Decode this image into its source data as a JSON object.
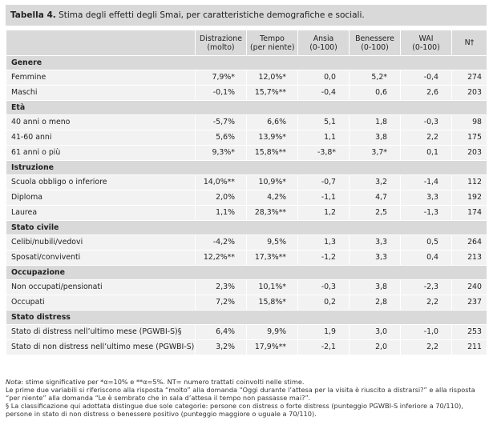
{
  "caption": {
    "label": "Tabella 4.",
    "text": " Stima degli effetti degli Smai, per caratteristiche demografiche e sociali."
  },
  "headers": [
    "",
    "Distrazione\n(molto)",
    "Tempo\n(per niente)",
    "Ansia\n(0-100)",
    "Benessere\n(0-100)",
    "WAI\n(0-100)",
    "N†"
  ],
  "sections": [
    {
      "title": "Genere",
      "rows": [
        [
          "Femmine",
          "7,9%*",
          "12,0%*",
          "0,0",
          "5,2*",
          "-0,4",
          "274"
        ],
        [
          "Maschi",
          "-0,1%",
          "15,7%**",
          "-0,4",
          "0,6",
          "2,6",
          "203"
        ]
      ]
    },
    {
      "title": "Età",
      "rows": [
        [
          "40 anni o meno",
          "-5,7%",
          "6,6%",
          "5,1",
          "1,8",
          "-0,3",
          "98"
        ],
        [
          "41-60 anni",
          "5,6%",
          "13,9%*",
          "1,1",
          "3,8",
          "2,2",
          "175"
        ],
        [
          "61 anni o più",
          "9,3%*",
          "15,8%**",
          "-3,8*",
          "3,7*",
          "0,1",
          "203"
        ]
      ]
    },
    {
      "title": "Istruzione",
      "rows": [
        [
          "Scuola obbligo o inferiore",
          "14,0%**",
          "10,9%*",
          "-0,7",
          "3,2",
          "-1,4",
          "112"
        ],
        [
          "Diploma",
          "2,0%",
          "4,2%",
          "-1,1",
          "4,7",
          "3,3",
          "192"
        ],
        [
          "Laurea",
          "1,1%",
          "28,3%**",
          "1,2",
          "2,5",
          "-1,3",
          "174"
        ]
      ]
    },
    {
      "title": "Stato civile",
      "rows": [
        [
          "Celibi/nubili/vedovi",
          "-4,2%",
          "9,5%",
          "1,3",
          "3,3",
          "0,5",
          "264"
        ],
        [
          "Sposati/conviventi",
          "12,2%**",
          "17,3%**",
          "-1,2",
          "3,3",
          "0,4",
          "213"
        ]
      ]
    },
    {
      "title": "Occupazione",
      "rows": [
        [
          "Non occupati/pensionati",
          "2,3%",
          "10,1%*",
          "-0,3",
          "3,8",
          "-2,3",
          "240"
        ],
        [
          "Occupati",
          "7,2%",
          "15,8%*",
          "0,2",
          "2,8",
          "2,2",
          "237"
        ]
      ]
    },
    {
      "title": "Stato distress",
      "rows": [
        [
          "Stato di distress nell’ultimo mese (PGWBI-S)§",
          "6,4%",
          "9,9%",
          "1,9",
          "3,0",
          "-1,0",
          "253"
        ],
        [
          "Stato di non distress nell’ultimo mese (PGWBI-S)",
          "3,2%",
          "17,9%**",
          "-2,1",
          "2,0",
          "2,2",
          "211"
        ]
      ]
    }
  ],
  "notes": {
    "line1_label": "Nota",
    "line1_text": ": stime significative per *α=10% e **α=5%. NT= numero trattati coinvolti nelle stime.",
    "line2": "Le prime due variabili si riferiscono alla risposta “molto” alla domanda “Oggi durante l’attesa per la visita è riuscito a distrarsi?” e alla risposta “per niente” alla domanda “Le è sembrato che in sala d’attesa il tempo non passasse mai?”.",
    "line3": "§ La classificazione qui adottata distingue due sole categorie: persone con distress o forte distress (punteggio PGWBI-S inferiore a 70/110), persone in stato di non distress o benessere positivo (punteggio maggiore o uguale a 70/110)."
  }
}
